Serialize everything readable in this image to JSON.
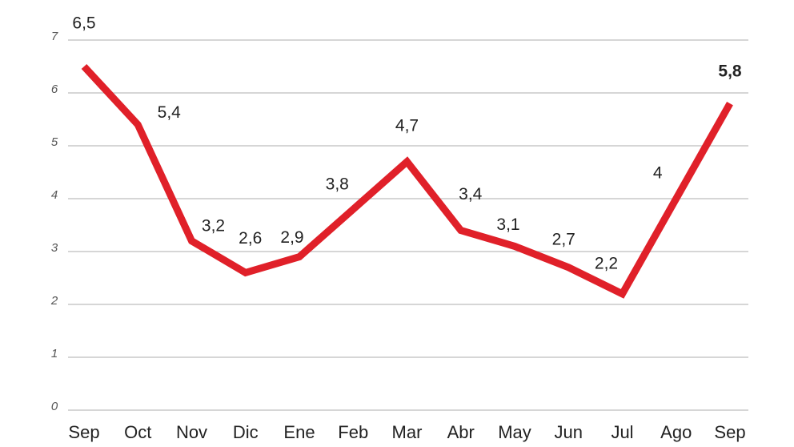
{
  "chart_data": {
    "type": "line",
    "categories": [
      "Sep",
      "Oct",
      "Nov",
      "Dic",
      "Ene",
      "Feb",
      "Mar",
      "Abr",
      "May",
      "Jun",
      "Jul",
      "Ago",
      "Sep"
    ],
    "series": [
      {
        "color": "#e02029",
        "values": [
          6.5,
          5.4,
          3.2,
          2.6,
          2.9,
          3.8,
          4.7,
          3.4,
          3.1,
          2.7,
          2.2,
          4,
          5.8
        ],
        "value_labels": [
          "6,5",
          "5,4",
          "3,2",
          "2,6",
          "2,9",
          "3,8",
          "4,7",
          "3,4",
          "3,1",
          "2,7",
          "2,2",
          "4",
          "5,8"
        ]
      }
    ],
    "ylim": [
      0,
      7
    ],
    "yticks": [
      0,
      1,
      2,
      3,
      4,
      5,
      6,
      7
    ],
    "grid": true
  }
}
